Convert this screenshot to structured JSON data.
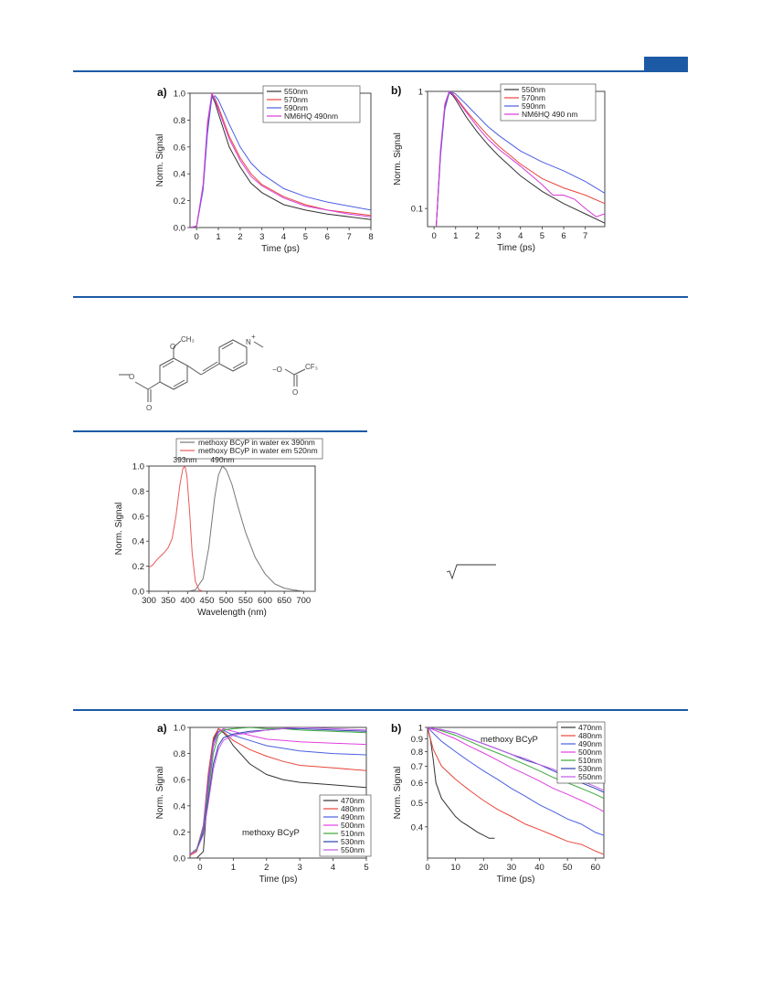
{
  "colors": {
    "rule": "#1d5aa5"
  },
  "chart_data": [
    {
      "id": "fig1a",
      "type": "line",
      "panel_label": "a)",
      "xlabel": "Time (ps)",
      "ylabel": "Norm. Signal",
      "xlim": [
        -0.3,
        8
      ],
      "ylim": [
        0,
        1.0
      ],
      "yscale": "linear",
      "xticks": [
        "0",
        "1",
        "2",
        "3",
        "4",
        "5",
        "6",
        "7",
        "8"
      ],
      "yticks": [
        "0.0",
        "0.2",
        "0.4",
        "0.6",
        "0.8",
        "1.0"
      ],
      "legend_position": "top-right",
      "series": [
        {
          "name": "550nm",
          "color": "#333333",
          "x": [
            -0.3,
            0.0,
            0.3,
            0.5,
            0.7,
            0.85,
            1.0,
            1.5,
            2.0,
            2.5,
            3.0,
            4.0,
            5.0,
            6.0,
            7.0,
            8.0
          ],
          "y": [
            0.0,
            0.01,
            0.3,
            0.75,
            0.98,
            0.93,
            0.85,
            0.6,
            0.45,
            0.33,
            0.26,
            0.17,
            0.13,
            0.1,
            0.08,
            0.06
          ]
        },
        {
          "name": "570nm",
          "color": "#e8463c",
          "x": [
            -0.3,
            0.0,
            0.3,
            0.5,
            0.7,
            0.85,
            1.0,
            1.5,
            2.0,
            2.5,
            3.0,
            4.0,
            5.0,
            6.0,
            7.0,
            8.0
          ],
          "y": [
            0.0,
            0.01,
            0.3,
            0.74,
            0.99,
            0.96,
            0.9,
            0.68,
            0.52,
            0.4,
            0.32,
            0.23,
            0.17,
            0.13,
            0.11,
            0.09
          ]
        },
        {
          "name": "590nm",
          "color": "#4a5fe0",
          "x": [
            -0.3,
            0.0,
            0.3,
            0.5,
            0.7,
            0.85,
            1.0,
            1.5,
            2.0,
            2.5,
            3.0,
            4.0,
            5.0,
            6.0,
            7.0,
            8.0
          ],
          "y": [
            0.0,
            0.01,
            0.28,
            0.7,
            0.97,
            0.98,
            0.95,
            0.77,
            0.6,
            0.48,
            0.4,
            0.29,
            0.23,
            0.19,
            0.16,
            0.13
          ]
        },
        {
          "name": "NM6HQ 490nm",
          "color": "#d63ad6",
          "x": [
            -0.3,
            0.0,
            0.3,
            0.5,
            0.7,
            0.85,
            1.0,
            1.5,
            2.0,
            2.5,
            3.0,
            4.0,
            5.0,
            6.0,
            7.0,
            8.0
          ],
          "y": [
            0.0,
            0.01,
            0.32,
            0.78,
            1.0,
            0.95,
            0.88,
            0.66,
            0.5,
            0.38,
            0.31,
            0.22,
            0.16,
            0.13,
            0.1,
            0.08
          ]
        }
      ]
    },
    {
      "id": "fig1b",
      "type": "line",
      "panel_label": "b)",
      "xlabel": "Time (ps)",
      "ylabel": "Norm. Signal",
      "xlim": [
        -0.3,
        7.9
      ],
      "ylim": [
        0.07,
        1.0
      ],
      "yscale": "log",
      "xticks": [
        "0",
        "1",
        "2",
        "3",
        "4",
        "5",
        "6",
        "7"
      ],
      "yticks": [
        "0.1",
        "1"
      ],
      "legend_position": "top-right",
      "series": [
        {
          "name": "550nm",
          "color": "#333333",
          "x": [
            0.1,
            0.3,
            0.5,
            0.7,
            0.85,
            1.0,
            1.5,
            2.0,
            2.5,
            3.0,
            4.0,
            5.0,
            6.0,
            7.0,
            7.9
          ],
          "y": [
            0.07,
            0.3,
            0.75,
            0.98,
            0.93,
            0.85,
            0.6,
            0.45,
            0.35,
            0.28,
            0.19,
            0.14,
            0.11,
            0.09,
            0.075
          ]
        },
        {
          "name": "570nm",
          "color": "#e8463c",
          "x": [
            0.1,
            0.3,
            0.5,
            0.7,
            0.85,
            1.0,
            1.5,
            2.0,
            2.5,
            3.0,
            4.0,
            5.0,
            6.0,
            7.0,
            7.9
          ],
          "y": [
            0.07,
            0.3,
            0.74,
            0.99,
            0.96,
            0.9,
            0.68,
            0.53,
            0.42,
            0.34,
            0.24,
            0.18,
            0.15,
            0.13,
            0.11
          ]
        },
        {
          "name": "590nm",
          "color": "#4a5fe0",
          "x": [
            0.1,
            0.3,
            0.5,
            0.7,
            0.85,
            1.0,
            1.5,
            2.0,
            2.5,
            3.0,
            4.0,
            5.0,
            6.0,
            7.0,
            7.9
          ],
          "y": [
            0.07,
            0.28,
            0.7,
            0.97,
            0.98,
            0.95,
            0.77,
            0.62,
            0.5,
            0.42,
            0.31,
            0.25,
            0.21,
            0.17,
            0.135
          ]
        },
        {
          "name": "NM6HQ 490 nm",
          "color": "#d63ad6",
          "x": [
            0.1,
            0.3,
            0.5,
            0.7,
            0.85,
            1.0,
            1.5,
            2.0,
            2.5,
            3.0,
            4.0,
            5.0,
            5.5,
            6.0,
            6.5,
            7.0,
            7.5,
            7.9
          ],
          "y": [
            0.07,
            0.32,
            0.78,
            1.0,
            0.95,
            0.88,
            0.66,
            0.5,
            0.39,
            0.32,
            0.23,
            0.16,
            0.13,
            0.13,
            0.12,
            0.1,
            0.085,
            0.09
          ]
        }
      ]
    },
    {
      "id": "fig2",
      "type": "line",
      "xlabel": "Wavelength (nm)",
      "ylabel": "Norm. Signal",
      "xlim": [
        300,
        730
      ],
      "ylim": [
        0,
        1.0
      ],
      "yscale": "linear",
      "xticks": [
        "300",
        "350",
        "400",
        "450",
        "500",
        "550",
        "600",
        "650",
        "700"
      ],
      "yticks": [
        "0.0",
        "0.2",
        "0.4",
        "0.6",
        "0.8",
        "1.0"
      ],
      "legend_position": "top",
      "annotations": [
        "393nm",
        "490nm"
      ],
      "series": [
        {
          "name": "methoxy BCyP in water ex 390nm",
          "color": "#777777",
          "x": [
            400,
            420,
            440,
            455,
            470,
            480,
            490,
            500,
            515,
            530,
            550,
            575,
            600,
            625,
            650,
            675,
            700,
            730
          ],
          "y": [
            0.0,
            0.01,
            0.1,
            0.35,
            0.75,
            0.93,
            1.0,
            0.97,
            0.85,
            0.68,
            0.47,
            0.27,
            0.14,
            0.06,
            0.025,
            0.01,
            0.0,
            0.0
          ]
        },
        {
          "name": "methoxy BCyP in water em 520nm",
          "color": "#e85a5a",
          "x": [
            300,
            310,
            320,
            330,
            340,
            350,
            360,
            370,
            380,
            388,
            393,
            398,
            405,
            412,
            420,
            430,
            440
          ],
          "y": [
            0.19,
            0.21,
            0.25,
            0.28,
            0.31,
            0.35,
            0.42,
            0.6,
            0.85,
            0.98,
            1.0,
            0.93,
            0.65,
            0.3,
            0.08,
            0.01,
            0.0
          ]
        }
      ]
    },
    {
      "id": "fig3a",
      "type": "line",
      "panel_label": "a)",
      "xlabel": "Time (ps)",
      "ylabel": "Norm. Signal",
      "xlim": [
        -0.3,
        5
      ],
      "ylim": [
        0,
        1.0
      ],
      "yscale": "linear",
      "xticks": [
        "0",
        "1",
        "2",
        "3",
        "4",
        "5"
      ],
      "yticks": [
        "0.0",
        "0.2",
        "0.4",
        "0.6",
        "0.8",
        "1.0"
      ],
      "legend_position": "bottom-right",
      "annotations": [
        "methoxy BCyP"
      ],
      "series": [
        {
          "name": "470nm",
          "color": "#333333",
          "x": [
            -0.3,
            -0.1,
            0.1,
            0.25,
            0.4,
            0.55,
            0.7,
            0.85,
            1.0,
            1.5,
            2.0,
            2.5,
            3.0,
            4.0,
            5.0
          ],
          "y": [
            0.0,
            0.0,
            0.05,
            0.55,
            0.9,
            0.99,
            0.96,
            0.92,
            0.86,
            0.72,
            0.64,
            0.6,
            0.58,
            0.56,
            0.54
          ]
        },
        {
          "name": "480nm",
          "color": "#e8463c",
          "x": [
            -0.3,
            -0.1,
            0.1,
            0.25,
            0.4,
            0.55,
            0.7,
            1.0,
            1.5,
            2.0,
            2.5,
            3.0,
            4.0,
            5.0
          ],
          "y": [
            0.02,
            0.05,
            0.25,
            0.65,
            0.92,
            0.99,
            0.97,
            0.9,
            0.83,
            0.78,
            0.74,
            0.71,
            0.69,
            0.67
          ]
        },
        {
          "name": "490nm",
          "color": "#4a5fe0",
          "x": [
            -0.3,
            -0.1,
            0.1,
            0.25,
            0.4,
            0.55,
            0.7,
            1.0,
            1.5,
            2.0,
            2.5,
            3.0,
            4.0,
            5.0
          ],
          "y": [
            0.03,
            0.06,
            0.25,
            0.6,
            0.88,
            0.97,
            0.98,
            0.94,
            0.9,
            0.86,
            0.84,
            0.82,
            0.8,
            0.79
          ]
        },
        {
          "name": "500nm",
          "color": "#e040e0",
          "x": [
            -0.3,
            -0.1,
            0.1,
            0.25,
            0.4,
            0.55,
            0.7,
            1.0,
            1.5,
            2.0,
            2.5,
            3.0,
            4.0,
            5.0
          ],
          "y": [
            0.03,
            0.07,
            0.24,
            0.55,
            0.85,
            0.96,
            0.99,
            0.97,
            0.94,
            0.91,
            0.9,
            0.89,
            0.88,
            0.87
          ]
        },
        {
          "name": "510nm",
          "color": "#3aa83a",
          "x": [
            -0.3,
            -0.1,
            0.1,
            0.25,
            0.4,
            0.55,
            0.7,
            1.0,
            1.5,
            2.0,
            2.5,
            3.0,
            4.0,
            5.0
          ],
          "y": [
            0.03,
            0.07,
            0.22,
            0.5,
            0.8,
            0.94,
            0.98,
            0.99,
            1.0,
            0.99,
            0.99,
            0.98,
            0.97,
            0.96
          ]
        },
        {
          "name": "530nm",
          "color": "#2a3fae",
          "x": [
            -0.3,
            -0.1,
            0.1,
            0.25,
            0.4,
            0.55,
            0.7,
            1.0,
            1.5,
            2.0,
            2.5,
            3.0,
            4.0,
            5.0
          ],
          "y": [
            0.03,
            0.06,
            0.2,
            0.45,
            0.72,
            0.86,
            0.92,
            0.95,
            0.97,
            0.98,
            0.99,
            0.99,
            0.98,
            0.97
          ]
        },
        {
          "name": "550nm",
          "color": "#c05ae8",
          "x": [
            -0.3,
            -0.1,
            0.1,
            0.25,
            0.4,
            0.55,
            0.7,
            1.0,
            1.5,
            2.0,
            2.5,
            3.0,
            4.0,
            5.0
          ],
          "y": [
            0.03,
            0.06,
            0.18,
            0.42,
            0.68,
            0.83,
            0.9,
            0.94,
            0.96,
            0.98,
            0.99,
            1.0,
            0.99,
            0.98
          ]
        }
      ]
    },
    {
      "id": "fig3b",
      "type": "line",
      "panel_label": "b)",
      "xlabel": "Time (ps)",
      "ylabel": "Norm. Signal",
      "xlim": [
        0,
        63
      ],
      "ylim": [
        0.3,
        1.0
      ],
      "yscale": "log",
      "xticks": [
        "0",
        "10",
        "20",
        "30",
        "40",
        "50",
        "60"
      ],
      "yticks": [
        "0.4",
        "0.5",
        "0.6",
        "0.7",
        "0.8",
        "0.9",
        "1"
      ],
      "legend_position": "top-right",
      "annotations": [
        "methoxy BCyP"
      ],
      "series": [
        {
          "name": "470nm",
          "color": "#333333",
          "x": [
            0,
            1,
            2,
            3,
            5,
            8,
            10,
            12,
            15,
            18,
            20,
            22,
            24
          ],
          "y": [
            1.0,
            0.9,
            0.75,
            0.6,
            0.52,
            0.47,
            0.44,
            0.42,
            0.4,
            0.38,
            0.37,
            0.36,
            0.36
          ]
        },
        {
          "name": "480nm",
          "color": "#e8463c",
          "x": [
            0,
            2,
            5,
            10,
            15,
            20,
            25,
            30,
            35,
            40,
            45,
            50,
            55,
            60,
            63
          ],
          "y": [
            1.0,
            0.82,
            0.7,
            0.62,
            0.56,
            0.51,
            0.47,
            0.44,
            0.41,
            0.39,
            0.37,
            0.35,
            0.34,
            0.32,
            0.31
          ]
        },
        {
          "name": "490nm",
          "color": "#4a5fe0",
          "x": [
            0,
            2,
            5,
            10,
            15,
            20,
            25,
            30,
            35,
            40,
            45,
            50,
            55,
            60,
            63
          ],
          "y": [
            1.0,
            0.95,
            0.88,
            0.8,
            0.73,
            0.67,
            0.62,
            0.57,
            0.53,
            0.49,
            0.46,
            0.43,
            0.41,
            0.38,
            0.37
          ]
        },
        {
          "name": "500nm",
          "color": "#e040e0",
          "x": [
            0,
            2,
            5,
            10,
            15,
            20,
            25,
            30,
            35,
            40,
            45,
            50,
            55,
            60,
            63
          ],
          "y": [
            1.0,
            0.98,
            0.95,
            0.9,
            0.84,
            0.79,
            0.74,
            0.69,
            0.65,
            0.61,
            0.57,
            0.54,
            0.51,
            0.48,
            0.46
          ]
        },
        {
          "name": "510nm",
          "color": "#3aa83a",
          "x": [
            0,
            2,
            5,
            10,
            15,
            20,
            25,
            30,
            35,
            40,
            45,
            50,
            55,
            60,
            63
          ],
          "y": [
            1.0,
            0.99,
            0.97,
            0.93,
            0.88,
            0.83,
            0.79,
            0.75,
            0.71,
            0.67,
            0.63,
            0.6,
            0.57,
            0.54,
            0.52
          ]
        },
        {
          "name": "530nm",
          "color": "#2a3fae",
          "x": [
            0,
            2,
            5,
            10,
            15,
            20,
            25,
            30,
            35,
            40,
            45,
            50,
            55,
            60,
            63
          ],
          "y": [
            1.0,
            0.99,
            0.98,
            0.95,
            0.9,
            0.86,
            0.82,
            0.78,
            0.74,
            0.71,
            0.67,
            0.63,
            0.6,
            0.57,
            0.55
          ]
        },
        {
          "name": "550nm",
          "color": "#c05ae8",
          "x": [
            0,
            2,
            5,
            10,
            15,
            20,
            25,
            30,
            35,
            40,
            45,
            50,
            55,
            60,
            63
          ],
          "y": [
            1.0,
            0.99,
            0.98,
            0.95,
            0.9,
            0.86,
            0.82,
            0.78,
            0.75,
            0.71,
            0.68,
            0.64,
            0.61,
            0.58,
            0.56
          ]
        }
      ]
    }
  ],
  "structure": {
    "labels": [
      "CH₃",
      "O",
      "N",
      "+",
      "−O",
      "CF₃",
      "O",
      "O",
      "O"
    ]
  }
}
